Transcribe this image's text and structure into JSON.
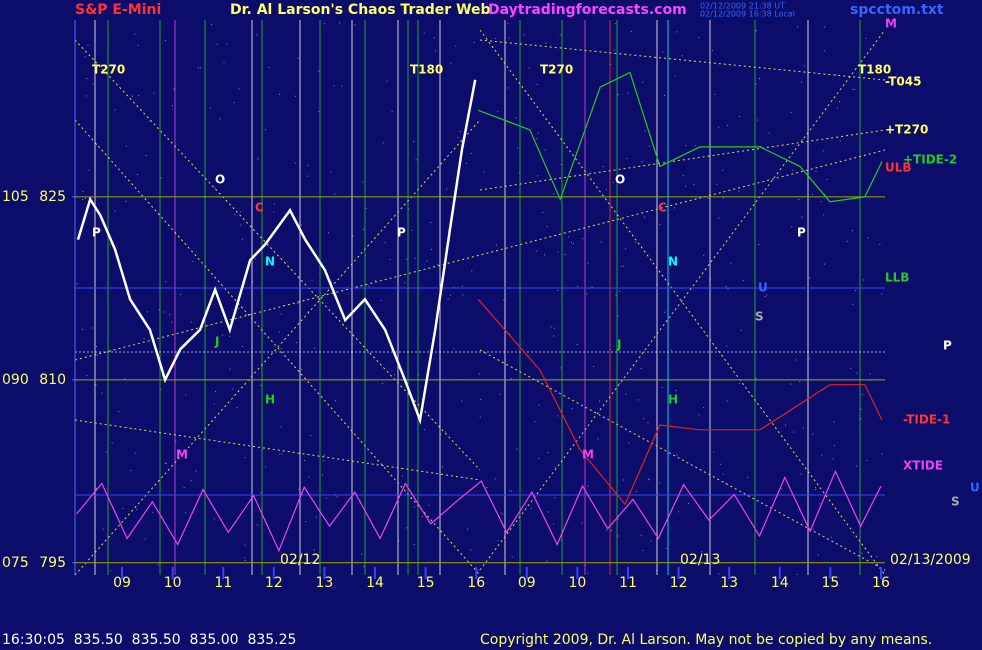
{
  "header": {
    "symbol": "S&P E-Mini",
    "title": "Dr. Al Larson's Chaos Trader Web",
    "site": "Daytradingforecasts.com",
    "time_ut": "02/12/2009 21:38 UT",
    "time_local": "02/12/2009 16:38 Local",
    "file": "spcctom.txt"
  },
  "chart_data": {
    "type": "line",
    "xlim": [
      -0.93,
      15.08
    ],
    "ylim": [
      794,
      839.5
    ],
    "y2lim": [
      74,
      119.5
    ],
    "xticks": [
      {
        "value": 0,
        "label": "09"
      },
      {
        "value": 1,
        "label": "10"
      },
      {
        "value": 2,
        "label": "11"
      },
      {
        "value": 3,
        "label": "12"
      },
      {
        "value": 4,
        "label": "13"
      },
      {
        "value": 5,
        "label": "14"
      },
      {
        "value": 6,
        "label": "15"
      },
      {
        "value": 7,
        "label": "16"
      },
      {
        "value": 8,
        "label": "09"
      },
      {
        "value": 9,
        "label": "10"
      },
      {
        "value": 10,
        "label": "11"
      },
      {
        "value": 11,
        "label": "12"
      },
      {
        "value": 12,
        "label": "13"
      },
      {
        "value": 13,
        "label": "14"
      },
      {
        "value": 14,
        "label": "15"
      },
      {
        "value": 15,
        "label": "16"
      }
    ],
    "yticks": [
      795,
      810,
      825
    ],
    "y2ticks": [
      {
        "value": 75,
        "label": "075"
      },
      {
        "value": 90,
        "label": "090"
      },
      {
        "value": 105,
        "label": "105"
      }
    ],
    "date_labels": [
      "02/12",
      "02/13",
      "02/13/2009"
    ],
    "series": [
      {
        "color": "#ffffff",
        "x": [
          -0.87,
          -0.63,
          -0.43,
          -0.14,
          0.16,
          0.55,
          0.85,
          1.15,
          1.54,
          1.84,
          2.13,
          2.53,
          2.83,
          3.32,
          3.62,
          4.01,
          4.41,
          4.8,
          5.2,
          5.59,
          5.89,
          6.19,
          6.48,
          6.72,
          6.98
        ],
        "values": [
          821.5,
          824.8,
          823.5,
          820.7,
          816.6,
          814.1,
          810,
          812.5,
          814.1,
          817.4,
          814.1,
          819.8,
          821.1,
          823.9,
          821.5,
          819,
          814.9,
          816.6,
          814.1,
          810,
          806.7,
          814.1,
          822.3,
          828.9,
          834.6
        ]
      },
      {
        "color": "#22cc22",
        "x": [
          7.04,
          8.06,
          8.66,
          9.45,
          10.04,
          10.63,
          11.42,
          12.61,
          13.4,
          13.99,
          14.68,
          15.02
        ],
        "values": [
          832.1,
          830.5,
          824.8,
          834,
          835.2,
          827.5,
          829.1,
          829.1,
          827.5,
          824.6,
          825,
          827.9
        ]
      },
      {
        "color": "#dd2222",
        "x": [
          7.04,
          8.26,
          9.05,
          9.94,
          10.63,
          11.42,
          12.61,
          13.99,
          14.68,
          15.02
        ],
        "values": [
          816.6,
          810.8,
          804.3,
          799.8,
          806.3,
          805.9,
          805.9,
          809.6,
          809.6,
          806.7
        ]
      },
      {
        "color": "#ee44ee",
        "x": [
          -0.9,
          -0.4,
          0.1,
          0.6,
          1.1,
          1.6,
          2.1,
          2.6,
          3.1,
          3.6,
          4.1,
          4.6,
          5.1,
          5.6,
          6.1,
          6.6,
          7.1,
          7.6,
          8.1,
          8.6,
          9.1,
          9.6,
          10.1,
          10.6,
          11.1,
          11.6,
          12.1,
          12.6,
          13.1,
          13.6,
          14.1,
          14.6,
          15.0
        ],
        "values": [
          799,
          801.5,
          797,
          800,
          796.5,
          801,
          797.5,
          800.5,
          796,
          801.2,
          798,
          800.8,
          797,
          801.5,
          798.2,
          800,
          801.7,
          797.5,
          800.8,
          796.5,
          801.3,
          797.8,
          800.2,
          797,
          801.4,
          798.5,
          800.6,
          797.2,
          802,
          797.6,
          802.5,
          798,
          801.3
        ]
      }
    ],
    "annotations": [
      {
        "text": "T270",
        "color": "#ffff66"
      },
      {
        "text": "T180",
        "color": "#ffff66"
      },
      {
        "text": "T270",
        "color": "#ffff66"
      },
      {
        "text": "T180",
        "color": "#ffff66"
      },
      {
        "text": "O",
        "color": "#ffffff"
      },
      {
        "text": "C",
        "color": "#ff3333"
      },
      {
        "text": "P",
        "color": "#ffffff"
      },
      {
        "text": "N",
        "color": "#00ffff"
      },
      {
        "text": "J",
        "color": "#22cc22"
      },
      {
        "text": "H",
        "color": "#22cc22"
      },
      {
        "text": "M",
        "color": "#ee44ee"
      },
      {
        "text": "P",
        "color": "#ffffff"
      },
      {
        "text": "O",
        "color": "#ffffff"
      },
      {
        "text": "C",
        "color": "#ff3333"
      },
      {
        "text": "P",
        "color": "#ffffff"
      },
      {
        "text": "N",
        "color": "#00ffff"
      },
      {
        "text": "U",
        "color": "#3366ff"
      },
      {
        "text": "S",
        "color": "#aaaaaa"
      },
      {
        "text": "J",
        "color": "#22cc22"
      },
      {
        "text": "H",
        "color": "#22cc22"
      },
      {
        "text": "M",
        "color": "#ee44ee"
      },
      {
        "text": "-T045",
        "color": "#ffff66"
      },
      {
        "text": "+T270",
        "color": "#ffff66"
      },
      {
        "text": "+TIDE-2",
        "color": "#22cc22"
      },
      {
        "text": "ULB",
        "color": "#ff3333"
      },
      {
        "text": "LLB",
        "color": "#22cc22"
      },
      {
        "text": "P",
        "color": "#ffffff"
      },
      {
        "text": "-TIDE-1",
        "color": "#ff3333"
      },
      {
        "text": "XTIDE",
        "color": "#ee44ee"
      },
      {
        "text": "S",
        "color": "#aaaaaa"
      },
      {
        "text": "U",
        "color": "#3366ff"
      },
      {
        "text": "M",
        "color": "#ee44ee"
      }
    ]
  },
  "footer": {
    "quote": "16:30:05  835.50  835.50  835.00  835.25",
    "copyright": "Copyright 2009, Dr. Al Larson. May not be copied by any means."
  }
}
